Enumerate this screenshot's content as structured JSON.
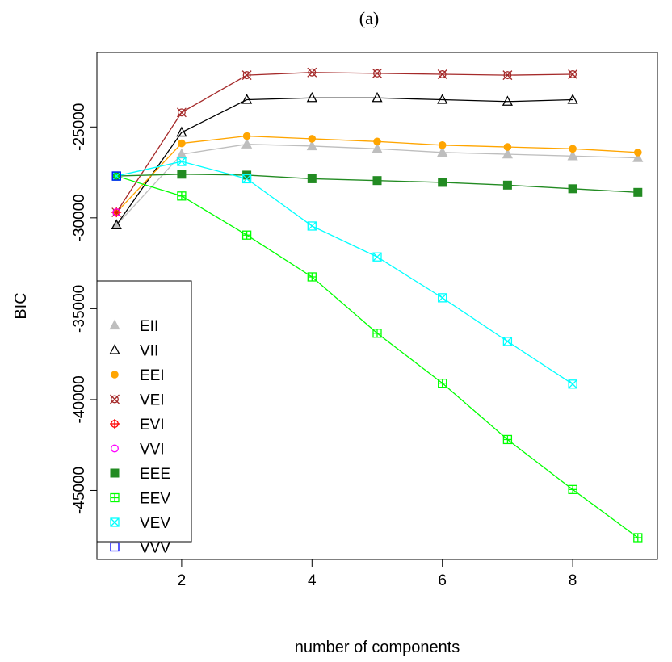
{
  "chart_data": {
    "type": "line",
    "title": "(a)",
    "xlabel": "number of components",
    "ylabel": "BIC",
    "xlim": [
      0.7,
      9.3
    ],
    "ylim": [
      -48800,
      -20900
    ],
    "xticks": [
      2,
      4,
      6,
      8
    ],
    "yticks": [
      -25000,
      -30000,
      -35000,
      -40000,
      -45000
    ],
    "x": [
      1,
      2,
      3,
      4,
      5,
      6,
      7,
      8,
      9
    ],
    "grid": false,
    "legend_position": "bottom-left",
    "series": [
      {
        "name": "EII",
        "color": "#bebebe",
        "marker": "triangle-filled",
        "values": [
          -30400,
          -26500,
          -25950,
          -26050,
          -26200,
          -26400,
          -26500,
          -26600,
          -26700
        ]
      },
      {
        "name": "VII",
        "color": "#000000",
        "marker": "triangle-open",
        "values": [
          -30400,
          -25300,
          -23500,
          -23400,
          -23400,
          -23500,
          -23600,
          -23500,
          null
        ]
      },
      {
        "name": "EEI",
        "color": "#ffa500",
        "marker": "circle-filled",
        "values": [
          -29700,
          -25900,
          -25500,
          -25650,
          -25800,
          -26000,
          -26100,
          -26200,
          -26400
        ]
      },
      {
        "name": "VEI",
        "color": "#a52a2a",
        "marker": "circle-x",
        "values": [
          -29700,
          -24200,
          -22150,
          -22000,
          -22050,
          -22100,
          -22150,
          -22100,
          null
        ]
      },
      {
        "name": "EVI",
        "color": "#ff0000",
        "marker": "circle-plus",
        "values": [
          -29700,
          null,
          null,
          null,
          null,
          null,
          null,
          null,
          null
        ]
      },
      {
        "name": "VVI",
        "color": "#ff00ff",
        "marker": "circle-open",
        "values": [
          -29700,
          null,
          null,
          null,
          null,
          null,
          null,
          null,
          null
        ]
      },
      {
        "name": "EEE",
        "color": "#228b22",
        "marker": "square-filled",
        "values": [
          -27700,
          -27600,
          -27650,
          -27850,
          -27950,
          -28050,
          -28200,
          -28400,
          -28600
        ]
      },
      {
        "name": "EEV",
        "color": "#00ff00",
        "marker": "square-plus",
        "values": [
          -27700,
          -28800,
          -30950,
          -33250,
          -36350,
          -39100,
          -42200,
          -44950,
          -47600
        ]
      },
      {
        "name": "VEV",
        "color": "#00ffff",
        "marker": "square-x",
        "values": [
          -27700,
          -26900,
          -27850,
          -30450,
          -32150,
          -34400,
          -36800,
          -39150,
          null
        ]
      },
      {
        "name": "VVV",
        "color": "#0000ff",
        "marker": "square-open",
        "values": [
          -27700,
          null,
          null,
          null,
          null,
          null,
          null,
          null,
          null
        ]
      }
    ]
  }
}
